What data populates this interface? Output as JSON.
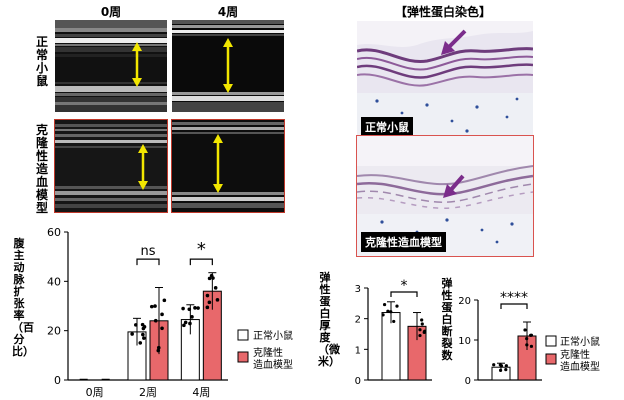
{
  "top": {
    "col_labels": [
      "0周",
      "4周"
    ],
    "row_labels": [
      "正常小鼠",
      "克隆性造血模型"
    ],
    "stain_title": "【弹性蛋白染色】",
    "stain_panel_labels": [
      "正常小鼠",
      "克隆性造血模型"
    ]
  },
  "colors": {
    "normal": "#ffffff",
    "model": "#e8686b",
    "arrow_yellow": "#f2e600",
    "histo_arrow": "#7b2d8b",
    "frame_red": "#c0392b"
  },
  "chart_data": [
    {
      "type": "bar",
      "ylabel": "腹主动脉扩张率（百分比）",
      "categories": [
        "0周",
        "2周",
        "4周"
      ],
      "ylim": [
        0,
        60
      ],
      "yticks": [
        0,
        20,
        40,
        60
      ],
      "series": [
        {
          "name": "正常小鼠",
          "values": [
            0,
            19.5,
            24.5
          ],
          "errors": [
            0.3,
            5.5,
            6
          ]
        },
        {
          "name": "克隆性造血模型",
          "values": [
            0,
            24,
            36
          ],
          "errors": [
            0.3,
            13.5,
            7.5
          ]
        }
      ],
      "annotations": [
        {
          "category": "2周",
          "text": "ns"
        },
        {
          "category": "4周",
          "text": "*"
        }
      ],
      "legend": {
        "position": "right"
      }
    },
    {
      "type": "bar",
      "ylabel": "弹性蛋白厚度（微米）",
      "categories": [
        "正常小鼠",
        "克隆性造血模型"
      ],
      "ylim": [
        0,
        3
      ],
      "yticks": [
        0,
        1,
        2,
        3
      ],
      "values": [
        2.2,
        1.75
      ],
      "errors": [
        0.35,
        0.45
      ],
      "annotation": "*"
    },
    {
      "type": "bar",
      "ylabel": "弹性蛋白断裂数",
      "categories": [
        "正常小鼠",
        "克隆性造血模型"
      ],
      "ylim": [
        0,
        20
      ],
      "yticks": [
        0,
        10,
        20
      ],
      "values": [
        3.2,
        11
      ],
      "errors": [
        1,
        3.5
      ],
      "annotation": "****",
      "legend": {
        "position": "right"
      }
    }
  ]
}
